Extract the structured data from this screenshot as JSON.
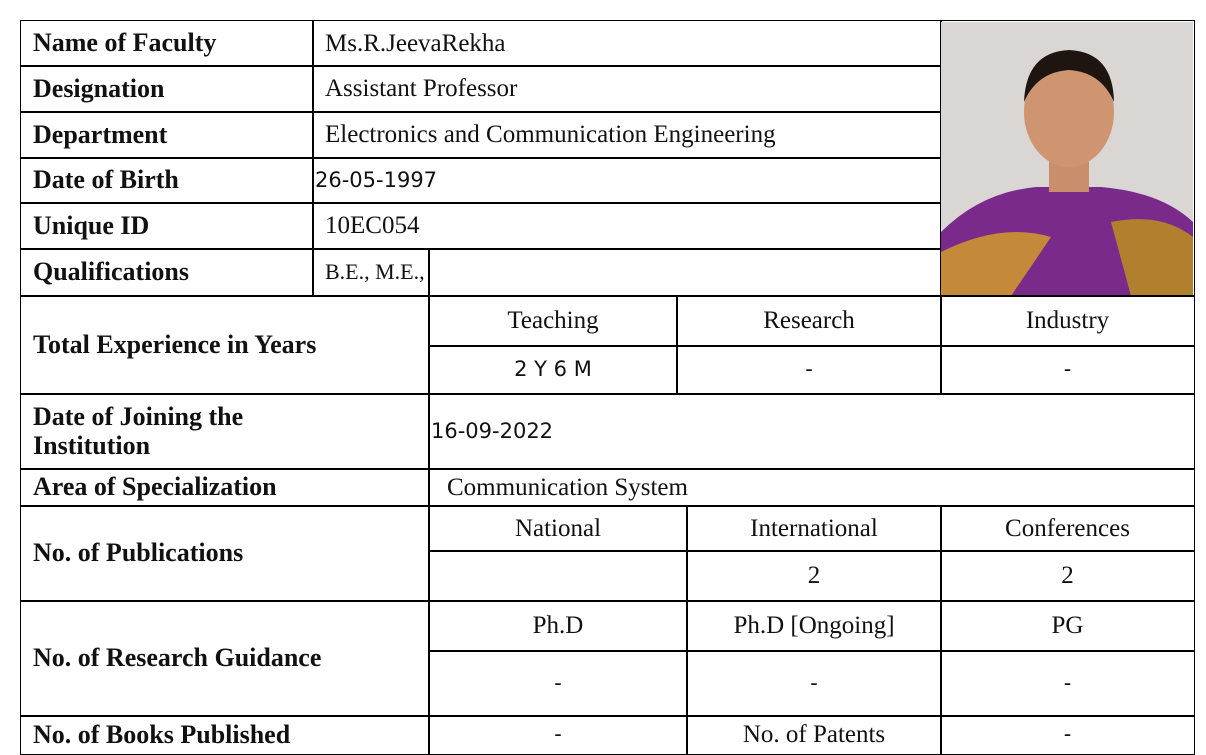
{
  "profile": {
    "rows": [
      [
        "Name of Faculty",
        "Ms.R.JeevaRekha"
      ],
      [
        "Designation",
        "Assistant Professor"
      ],
      [
        "Department",
        "Electronics and Communication Engineering"
      ],
      [
        "Date of Birth",
        "26-05-1997"
      ],
      [
        "Unique ID",
        "10EC054"
      ],
      [
        "Qualifications",
        "B.E., M.E.,"
      ]
    ]
  },
  "experience": {
    "label": "Total Experience in Years",
    "headers": [
      "Teaching",
      "Research",
      "Industry"
    ],
    "values": [
      "2 Y 6 M",
      "-",
      "-"
    ]
  },
  "joining": {
    "label": "Date of Joining the Institution",
    "value": "16-09-2022"
  },
  "specialization": {
    "label": "Area of Specialization",
    "value": "Communication System"
  },
  "publications": {
    "label": "No. of  Publications",
    "headers": [
      "National",
      "International",
      "Conferences"
    ],
    "values": [
      null,
      "2",
      "2"
    ]
  },
  "guidance": {
    "label": "No. of Research Guidance",
    "headers": [
      "Ph.D",
      "Ph.D [Ongoing]",
      "PG"
    ],
    "values": [
      "-",
      "-",
      "-"
    ]
  },
  "books": {
    "label": "No. of Books Published",
    "value": "-",
    "patents_label": "No. of Patents",
    "patents_value": "-"
  }
}
